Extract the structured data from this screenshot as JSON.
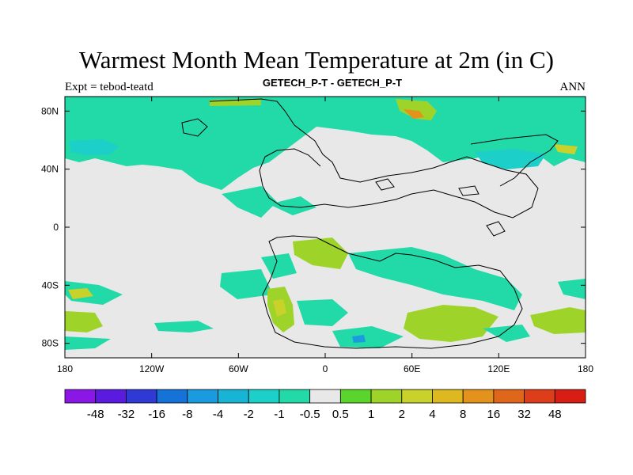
{
  "title": "Warmest Month Mean Temperature at 2m (in C)",
  "subtitle_left": "Expt = tebod-teatd",
  "subtitle_center": "GETECH_P-T - GETECH_P-T",
  "subtitle_right": "ANN",
  "x_ticks": [
    "180",
    "120W",
    "60W",
    "0",
    "60E",
    "120E",
    "180"
  ],
  "y_ticks": [
    "80N",
    "40N",
    "0",
    "40S",
    "80S"
  ],
  "colorbar": {
    "labels": [
      "-48",
      "-32",
      "-16",
      "-8",
      "-4",
      "-2",
      "-1",
      "-0.5",
      "0.5",
      "1",
      "2",
      "4",
      "8",
      "16",
      "32",
      "48"
    ],
    "colors": [
      "#8b17e6",
      "#5a1ae0",
      "#2f3ad6",
      "#1572d8",
      "#1a9be0",
      "#17b4d6",
      "#1ccfc9",
      "#22d9a8",
      "#e8e8e8",
      "#5ad52b",
      "#9ed42a",
      "#c8d22b",
      "#ddb91f",
      "#e3931b",
      "#e0671a",
      "#dd3d19",
      "#d81d14"
    ]
  },
  "colors": {
    "land_background": "#e8e8e8",
    "cool_cyan": "#22d9a8",
    "cool_blue": "#1ccfc9",
    "warm_green": "#9ed42a",
    "warm_yellow": "#c8d22b"
  }
}
